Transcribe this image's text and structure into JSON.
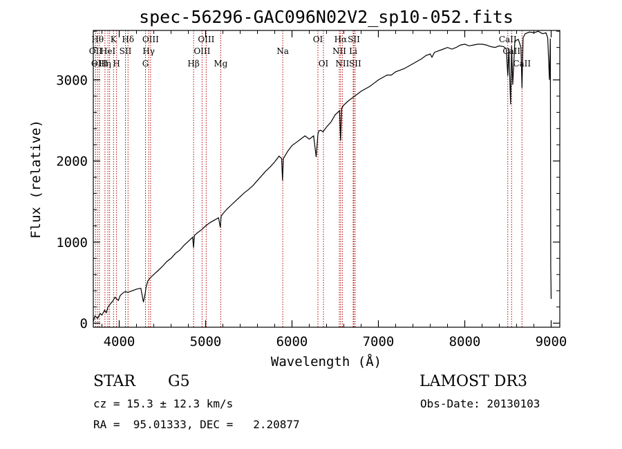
{
  "chart_data": {
    "type": "line",
    "title": "spec-56296-GAC096N02V2_sp10-052.fits",
    "xlabel": "Wavelength (Å)",
    "ylabel": "Flux (relative)",
    "xlim": [
      3700,
      9100
    ],
    "ylim": [
      -50,
      3610
    ],
    "xticks": [
      4000,
      5000,
      6000,
      7000,
      8000,
      9000
    ],
    "yticks": [
      0,
      1000,
      2000,
      3000
    ],
    "series": [
      {
        "name": "flux",
        "x": [
          3700,
          3720,
          3750,
          3780,
          3800,
          3830,
          3850,
          3870,
          3900,
          3930,
          3950,
          3970,
          3990,
          4010,
          4040,
          4070,
          4100,
          4150,
          4200,
          4250,
          4280,
          4300,
          4310,
          4330,
          4360,
          4400,
          4450,
          4500,
          4550,
          4600,
          4650,
          4700,
          4750,
          4800,
          4850,
          4860,
          4870,
          4900,
          4950,
          5000,
          5050,
          5100,
          5150,
          5170,
          5180,
          5200,
          5250,
          5300,
          5350,
          5400,
          5450,
          5500,
          5550,
          5600,
          5650,
          5700,
          5750,
          5800,
          5850,
          5880,
          5890,
          5900,
          5950,
          6000,
          6050,
          6100,
          6150,
          6200,
          6250,
          6280,
          6300,
          6310,
          6330,
          6360,
          6400,
          6450,
          6500,
          6550,
          6562,
          6575,
          6600,
          6650,
          6700,
          6750,
          6800,
          6850,
          6900,
          6950,
          7000,
          7050,
          7100,
          7150,
          7200,
          7250,
          7300,
          7350,
          7400,
          7450,
          7500,
          7550,
          7600,
          7620,
          7650,
          7700,
          7750,
          7800,
          7850,
          7900,
          7950,
          8000,
          8050,
          8100,
          8150,
          8200,
          8250,
          8300,
          8350,
          8400,
          8450,
          8480,
          8498,
          8510,
          8530,
          8542,
          8555,
          8580,
          8620,
          8650,
          8662,
          8675,
          8700,
          8750,
          8800,
          8850,
          8900,
          8940,
          8960,
          8980,
          8990,
          8995,
          9000
        ],
        "y": [
          20,
          90,
          60,
          120,
          100,
          160,
          130,
          200,
          240,
          280,
          320,
          300,
          280,
          340,
          370,
          390,
          380,
          400,
          420,
          430,
          260,
          360,
          440,
          520,
          560,
          600,
          650,
          700,
          760,
          800,
          860,
          900,
          960,
          1010,
          1060,
          930,
          1080,
          1110,
          1150,
          1200,
          1240,
          1270,
          1300,
          1180,
          1320,
          1350,
          1410,
          1460,
          1510,
          1560,
          1610,
          1650,
          1700,
          1760,
          1820,
          1880,
          1930,
          1990,
          2060,
          2030,
          1760,
          2030,
          2120,
          2190,
          2230,
          2270,
          2310,
          2270,
          2310,
          2050,
          2330,
          2370,
          2380,
          2360,
          2420,
          2480,
          2570,
          2620,
          2250,
          2650,
          2690,
          2740,
          2780,
          2820,
          2860,
          2890,
          2920,
          2960,
          3000,
          3030,
          3060,
          3060,
          3100,
          3120,
          3140,
          3170,
          3200,
          3230,
          3260,
          3300,
          3320,
          3280,
          3340,
          3360,
          3380,
          3400,
          3380,
          3400,
          3430,
          3440,
          3420,
          3430,
          3440,
          3440,
          3430,
          3410,
          3400,
          3420,
          3410,
          3380,
          3050,
          3390,
          2700,
          3420,
          2940,
          3480,
          3500,
          3400,
          2900,
          3520,
          3570,
          3590,
          3580,
          3600,
          3570,
          3580,
          3520,
          3000,
          3510,
          700,
          300
        ]
      }
    ],
    "line_markers": [
      {
        "wl": 3727,
        "label": "OII",
        "row": 1
      },
      {
        "wl": 3750,
        "label": "Hθ",
        "row": 0
      },
      {
        "wl": 3771,
        "label": "OIII",
        "row": 2
      },
      {
        "wl": 3835,
        "label": "Hη",
        "row": 2
      },
      {
        "wl": 3869,
        "label": "HeI",
        "row": 1
      },
      {
        "wl": 3889,
        "label": "",
        "row": 0
      },
      {
        "wl": 3934,
        "label": "K",
        "row": 0
      },
      {
        "wl": 3969,
        "label": "H",
        "row": 2
      },
      {
        "wl": 4072,
        "label": "SII",
        "row": 1
      },
      {
        "wl": 4102,
        "label": "Hδ",
        "row": 0
      },
      {
        "wl": 4304,
        "label": "G",
        "row": 2
      },
      {
        "wl": 4341,
        "label": "Hγ",
        "row": 1
      },
      {
        "wl": 4363,
        "label": "OIII",
        "row": 0
      },
      {
        "wl": 4861,
        "label": "Hβ",
        "row": 2
      },
      {
        "wl": 4959,
        "label": "OIII",
        "row": 1
      },
      {
        "wl": 5007,
        "label": "OIII",
        "row": 0
      },
      {
        "wl": 5175,
        "label": "Mg",
        "row": 2
      },
      {
        "wl": 5893,
        "label": "Na",
        "row": 1
      },
      {
        "wl": 6300,
        "label": "OI",
        "row": 0
      },
      {
        "wl": 6364,
        "label": "OI",
        "row": 2
      },
      {
        "wl": 6548,
        "label": "NII",
        "row": 1
      },
      {
        "wl": 6563,
        "label": "Hα",
        "row": 0
      },
      {
        "wl": 6583,
        "label": "NII",
        "row": 2
      },
      {
        "wl": 6708,
        "label": "Li",
        "row": 1
      },
      {
        "wl": 6716,
        "label": "SII",
        "row": 0
      },
      {
        "wl": 6731,
        "label": "SII",
        "row": 2
      },
      {
        "wl": 8498,
        "label": "CaII",
        "row": 0
      },
      {
        "wl": 8542,
        "label": "CaII",
        "row": 1
      },
      {
        "wl": 8662,
        "label": "CaII",
        "row": 2
      }
    ]
  },
  "info": {
    "class": "STAR",
    "subclass": "G5",
    "survey": "LAMOST DR3",
    "cz": "cz = 15.3 ± 12.3 km/s",
    "obs_date": "Obs-Date: 20130103",
    "radec": "RA =  95.01333, DEC =   2.20877"
  }
}
